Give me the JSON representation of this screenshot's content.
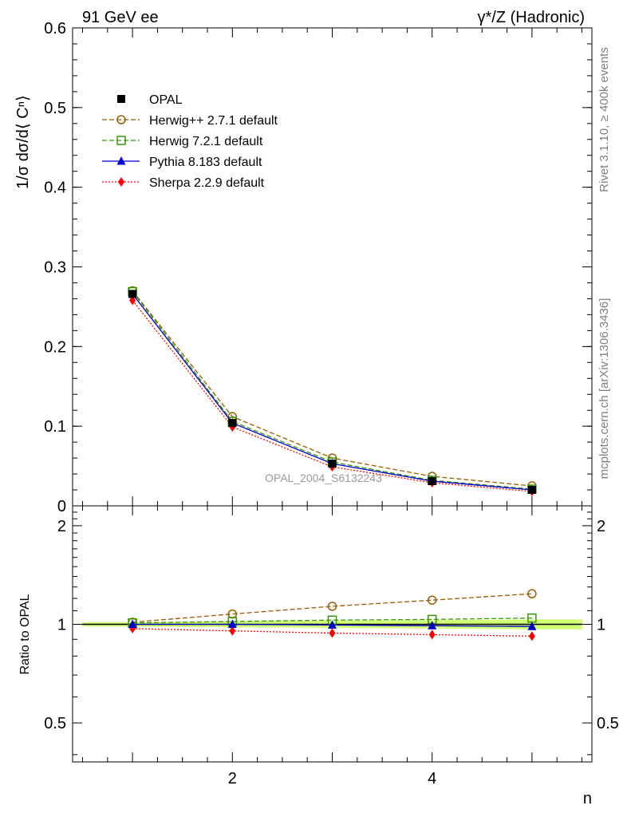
{
  "chart_data": [
    {
      "type": "line",
      "panel": "main",
      "title_left": "91 GeV ee",
      "title_right": "γ*/Z (Hadronic)",
      "ylabel": "1/σ dσ/d⟨ Cⁿ⟩",
      "xlabel": "n",
      "xlim": [
        0.4,
        5.6
      ],
      "ylim": [
        0,
        0.6
      ],
      "y_ticks": [
        "0",
        "0.1",
        "0.2",
        "0.3",
        "0.4",
        "0.5",
        "0.6"
      ],
      "y_tick_values": [
        0,
        0.1,
        0.2,
        0.3,
        0.4,
        0.5,
        0.6
      ],
      "x": [
        1,
        2,
        3,
        4,
        5
      ],
      "legend_position": "top-left",
      "analysis_label": "OPAL_2004_S6132243",
      "series": [
        {
          "name": "OPAL",
          "color": "#000000",
          "marker": "square-filled",
          "line": "none",
          "values": [
            0.266,
            0.104,
            0.053,
            0.031,
            0.02
          ]
        },
        {
          "name": "Herwig++ 2.7.1 default",
          "color": "#995c00",
          "marker": "circle-open",
          "line": "dashed",
          "values": [
            0.27,
            0.112,
            0.06,
            0.037,
            0.025
          ]
        },
        {
          "name": "Herwig 7.2.1 default",
          "color": "#339900",
          "marker": "square-open",
          "line": "dashed",
          "values": [
            0.269,
            0.106,
            0.055,
            0.032,
            0.021
          ]
        },
        {
          "name": "Pythia 8.183 default",
          "color": "#0000cc",
          "marker": "triangle-filled",
          "line": "solid",
          "values": [
            0.266,
            0.104,
            0.053,
            0.031,
            0.02
          ]
        },
        {
          "name": "Sherpa 2.2.9 default",
          "color": "#ff0000",
          "marker": "diamond-filled",
          "line": "dotted",
          "values": [
            0.258,
            0.099,
            0.049,
            0.029,
            0.018
          ]
        }
      ]
    },
    {
      "type": "line",
      "panel": "ratio",
      "ylabel": "Ratio to OPAL",
      "xlabel": "n",
      "xlim": [
        0.4,
        5.6
      ],
      "ylim": [
        0.38,
        2.3
      ],
      "y_ticks": [
        "0.5",
        "1",
        "2"
      ],
      "y_tick_values": [
        0.5,
        1,
        2
      ],
      "x_ticks": [
        "2",
        "4"
      ],
      "x_tick_values": [
        2,
        4
      ],
      "x": [
        1,
        2,
        3,
        4,
        5
      ],
      "band": {
        "color": "#ccff66",
        "low": [
          0.985,
          0.98,
          0.975,
          0.97,
          0.965
        ],
        "high": [
          1.015,
          1.02,
          1.025,
          1.03,
          1.035
        ]
      },
      "series": [
        {
          "name": "OPAL",
          "color": "#000000",
          "line": "solid",
          "values": [
            1.0,
            1.0,
            1.0,
            1.0,
            1.0
          ]
        },
        {
          "name": "Herwig++ 2.7.1 default",
          "color": "#995c00",
          "marker": "circle-open",
          "line": "dashed",
          "values": [
            1.015,
            1.075,
            1.135,
            1.185,
            1.24
          ]
        },
        {
          "name": "Herwig 7.2.1 default",
          "color": "#339900",
          "marker": "square-open",
          "line": "dashed",
          "values": [
            1.01,
            1.02,
            1.03,
            1.035,
            1.045
          ]
        },
        {
          "name": "Pythia 8.183 default",
          "color": "#0000cc",
          "marker": "triangle-filled",
          "line": "solid",
          "values": [
            1.0,
            1.0,
            0.995,
            0.99,
            0.985
          ]
        },
        {
          "name": "Sherpa 2.2.9 default",
          "color": "#ff0000",
          "marker": "diamond-filled",
          "line": "dotted",
          "values": [
            0.97,
            0.955,
            0.94,
            0.93,
            0.92
          ]
        }
      ]
    }
  ],
  "watermark_top": "Rivet 3.1.10, ≥ 400k events",
  "watermark_bottom": "mcplots.cern.ch [arXiv:1306.3436]"
}
